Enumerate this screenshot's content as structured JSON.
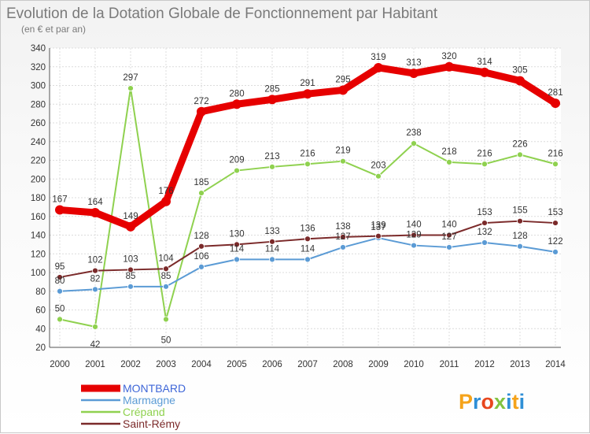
{
  "chart_data": {
    "type": "line",
    "title": "Evolution de la Dotation Globale de Fonctionnement par Habitant",
    "subtitle": "(en € et par an)",
    "xlabel": "",
    "ylabel": "",
    "x": [
      "2000",
      "2001",
      "2002",
      "2003",
      "2004",
      "2005",
      "2006",
      "2007",
      "2008",
      "2009",
      "2010",
      "2011",
      "2012",
      "2013",
      "2014"
    ],
    "ylim": [
      20,
      340
    ],
    "yticks": [
      20,
      40,
      60,
      80,
      100,
      120,
      140,
      160,
      180,
      200,
      220,
      240,
      260,
      280,
      300,
      320,
      340
    ],
    "grid": true,
    "legend_position": "bottom-left",
    "series": [
      {
        "name": "MONTBARD",
        "color": "#e60000",
        "values": [
          167,
          164,
          149,
          176,
          272,
          280,
          285,
          291,
          295,
          319,
          313,
          320,
          314,
          305,
          281
        ]
      },
      {
        "name": "Marmagne",
        "color": "#5b9bd5",
        "values": [
          80,
          82,
          85,
          85,
          106,
          114,
          114,
          114,
          127,
          137,
          129,
          127,
          132,
          128,
          122
        ]
      },
      {
        "name": "Crépand",
        "color": "#8fd14f",
        "values": [
          50,
          42,
          297,
          50,
          185,
          209,
          213,
          216,
          219,
          203,
          238,
          218,
          216,
          226,
          216
        ]
      },
      {
        "name": "Saint-Rémy",
        "color": "#7b2a2a",
        "values": [
          95,
          102,
          103,
          104,
          128,
          130,
          133,
          136,
          138,
          139,
          140,
          140,
          153,
          155,
          153
        ]
      }
    ]
  },
  "logo": {
    "letters": [
      "P",
      "r",
      "o",
      "x",
      "i",
      "t",
      "i"
    ],
    "colors": [
      "#f5a31a",
      "#2f8fd6",
      "#e8471e",
      "#82c341",
      "#2f8fd6",
      "#f5a31a",
      "#2f8fd6"
    ]
  }
}
